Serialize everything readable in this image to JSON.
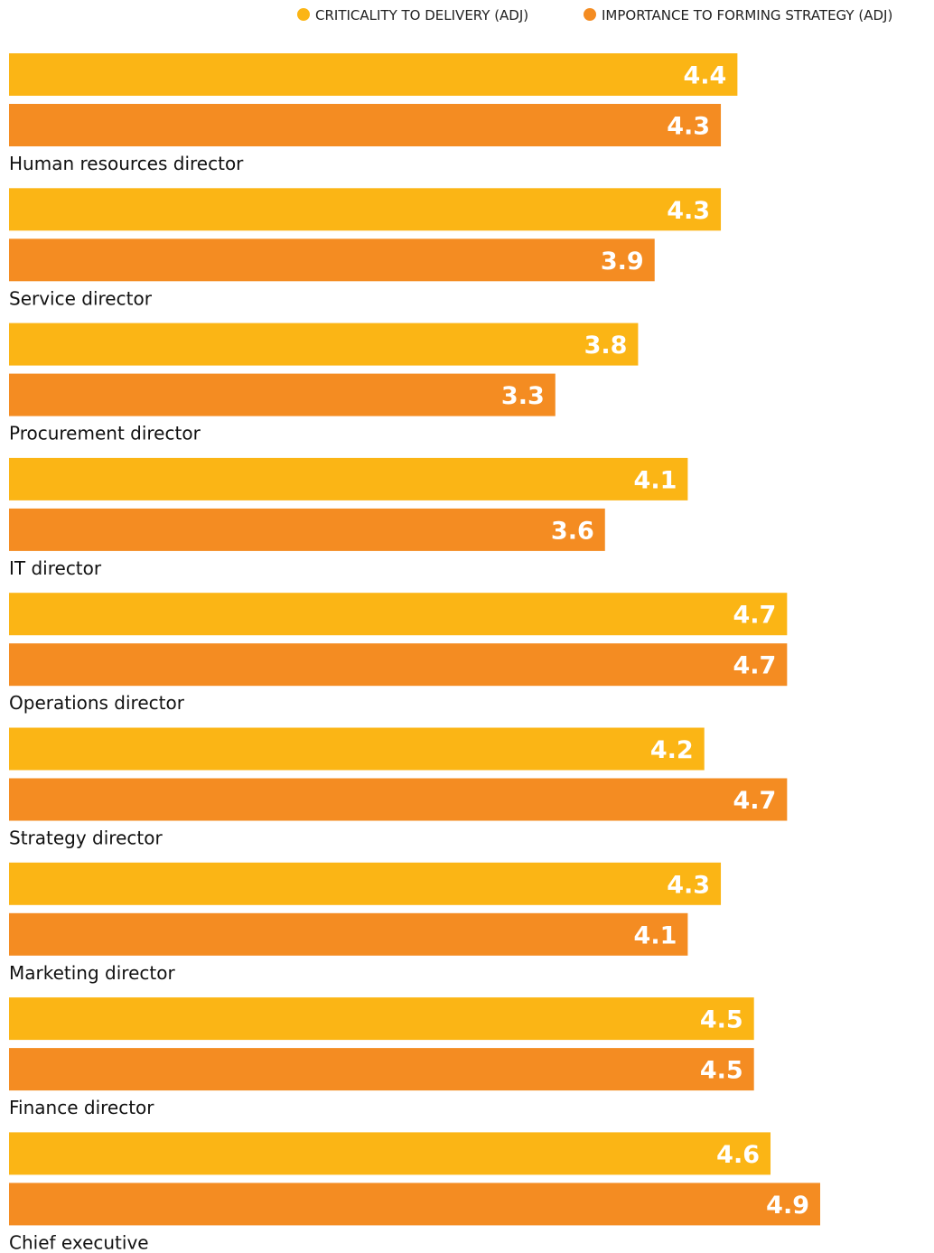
{
  "chart_data": {
    "type": "bar",
    "orientation": "horizontal",
    "title": "",
    "xlabel": "",
    "ylabel": "",
    "xlim": [
      0,
      5.0
    ],
    "grid": false,
    "legend_position": "top-right",
    "categories": [
      "Human resources director",
      "Service director",
      "Procurement director",
      "IT director",
      "Operations director",
      "Strategy director",
      "Marketing director",
      "Finance director",
      "Chief executive"
    ],
    "series": [
      {
        "name": "CRITICALITY TO DELIVERY (ADJ)",
        "color": "#fbb515",
        "values": [
          4.4,
          4.3,
          3.8,
          4.1,
          4.7,
          4.2,
          4.3,
          4.5,
          4.6
        ]
      },
      {
        "name": "IMPORTANCE TO FORMING STRATEGY (ADJ)",
        "color": "#f48c22",
        "values": [
          4.3,
          3.9,
          3.3,
          3.6,
          4.7,
          4.7,
          4.1,
          4.5,
          4.9
        ]
      }
    ]
  }
}
